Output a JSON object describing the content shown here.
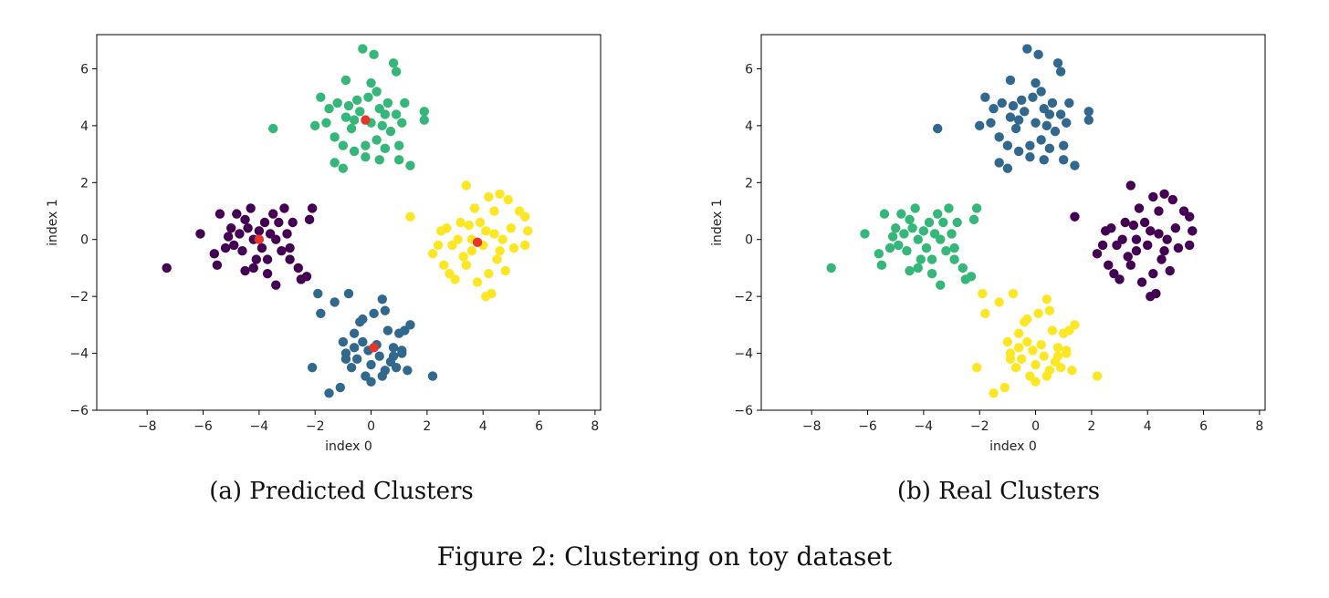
{
  "figure": {
    "caption": "Figure 2: Clustering on toy dataset"
  },
  "chart_data": [
    {
      "type": "scatter",
      "caption": "(a) Predicted Clusters",
      "xlabel": "index 0",
      "ylabel": "index 1",
      "xlim": [
        -9.8,
        8.2
      ],
      "ylim": [
        -6,
        7.2
      ],
      "xticks": [
        -8,
        -6,
        -4,
        -2,
        0,
        2,
        4,
        6,
        8
      ],
      "yticks": [
        -6,
        -4,
        -2,
        0,
        2,
        4,
        6
      ],
      "grid": false,
      "colors": {
        "c0": "#440154",
        "c1": "#31688e",
        "c2": "#35b779",
        "c3": "#fde725",
        "centroid": "#e8352a"
      },
      "centroids": [
        [
          -4.0,
          0.0
        ],
        [
          -0.2,
          4.2
        ],
        [
          3.8,
          -0.1
        ],
        [
          0.1,
          -3.8
        ]
      ],
      "clusters": {
        "c0": [
          [
            -7.3,
            -1.0
          ],
          [
            -6.1,
            0.2
          ],
          [
            -5.6,
            -0.5
          ],
          [
            -5.5,
            -0.9
          ],
          [
            -5.4,
            0.9
          ],
          [
            -5.2,
            -0.3
          ],
          [
            -5.0,
            0.4
          ],
          [
            -4.8,
            0.9
          ],
          [
            -4.7,
            0.2
          ],
          [
            -4.6,
            -0.4
          ],
          [
            -4.5,
            0.7
          ],
          [
            -4.4,
            0.4
          ],
          [
            -4.3,
            1.1
          ],
          [
            -4.2,
            0.0
          ],
          [
            -4.1,
            -0.7
          ],
          [
            -4.0,
            0.3
          ],
          [
            -3.9,
            -0.3
          ],
          [
            -3.8,
            0.6
          ],
          [
            -3.7,
            -0.7
          ],
          [
            -3.6,
            0.2
          ],
          [
            -3.5,
            0.9
          ],
          [
            -3.4,
            0.0
          ],
          [
            -3.3,
            0.6
          ],
          [
            -3.2,
            -0.4
          ],
          [
            -3.1,
            1.1
          ],
          [
            -3.0,
            0.2
          ],
          [
            -2.9,
            -0.7
          ],
          [
            -2.8,
            0.6
          ],
          [
            -2.6,
            -1.0
          ],
          [
            -2.5,
            -1.4
          ],
          [
            -2.3,
            -1.3
          ],
          [
            -3.4,
            -1.6
          ],
          [
            -4.5,
            -1.1
          ],
          [
            -4.9,
            -0.2
          ],
          [
            -3.7,
            -1.2
          ],
          [
            -2.9,
            -0.3
          ],
          [
            -2.1,
            1.1
          ],
          [
            -2.2,
            0.7
          ],
          [
            -4.2,
            -1.0
          ],
          [
            -5.1,
            0.1
          ]
        ],
        "c2": [
          [
            -3.5,
            3.9
          ],
          [
            -2.0,
            4.0
          ],
          [
            -1.6,
            4.1
          ],
          [
            -1.5,
            4.6
          ],
          [
            -1.3,
            3.6
          ],
          [
            -1.2,
            4.8
          ],
          [
            -1.0,
            3.3
          ],
          [
            -0.9,
            4.3
          ],
          [
            -0.8,
            4.7
          ],
          [
            -0.7,
            3.9
          ],
          [
            -0.6,
            3.1
          ],
          [
            -0.5,
            4.9
          ],
          [
            -0.4,
            4.5
          ],
          [
            -0.3,
            6.7
          ],
          [
            -0.2,
            3.3
          ],
          [
            -0.1,
            5.0
          ],
          [
            0.0,
            4.1
          ],
          [
            0.1,
            6.5
          ],
          [
            0.2,
            3.5
          ],
          [
            0.3,
            4.6
          ],
          [
            0.4,
            4.0
          ],
          [
            0.5,
            3.2
          ],
          [
            0.6,
            4.8
          ],
          [
            0.7,
            3.8
          ],
          [
            0.8,
            6.2
          ],
          [
            0.9,
            4.4
          ],
          [
            1.0,
            3.3
          ],
          [
            1.1,
            4.1
          ],
          [
            1.2,
            4.8
          ],
          [
            1.4,
            2.6
          ],
          [
            1.9,
            4.2
          ],
          [
            1.9,
            4.5
          ],
          [
            -1.8,
            5.0
          ],
          [
            -0.9,
            5.6
          ],
          [
            0.0,
            5.5
          ],
          [
            -1.0,
            2.5
          ],
          [
            -0.2,
            2.9
          ],
          [
            0.3,
            2.8
          ],
          [
            1.0,
            2.8
          ],
          [
            -1.3,
            2.7
          ],
          [
            0.2,
            5.2
          ],
          [
            0.9,
            5.9
          ],
          [
            -0.6,
            4.2
          ],
          [
            0.5,
            4.4
          ]
        ],
        "c3": [
          [
            1.4,
            0.8
          ],
          [
            2.2,
            -0.5
          ],
          [
            2.4,
            -0.2
          ],
          [
            2.5,
            0.3
          ],
          [
            2.6,
            -0.9
          ],
          [
            2.7,
            0.4
          ],
          [
            2.8,
            -1.2
          ],
          [
            3.0,
            -1.4
          ],
          [
            3.1,
            0.0
          ],
          [
            3.2,
            0.6
          ],
          [
            3.3,
            -0.6
          ],
          [
            3.4,
            1.9
          ],
          [
            3.5,
            0.5
          ],
          [
            3.6,
            -0.4
          ],
          [
            3.7,
            1.1
          ],
          [
            3.8,
            -1.5
          ],
          [
            3.9,
            0.6
          ],
          [
            4.0,
            -0.2
          ],
          [
            4.1,
            -2.0
          ],
          [
            4.2,
            1.5
          ],
          [
            4.3,
            -1.9
          ],
          [
            4.4,
            0.2
          ],
          [
            4.5,
            -0.7
          ],
          [
            4.6,
            1.6
          ],
          [
            4.7,
            0.0
          ],
          [
            4.8,
            -1.1
          ],
          [
            4.9,
            1.4
          ],
          [
            5.0,
            0.4
          ],
          [
            5.1,
            -0.3
          ],
          [
            5.3,
            1.0
          ],
          [
            5.5,
            -0.2
          ],
          [
            5.5,
            0.8
          ],
          [
            5.6,
            0.3
          ],
          [
            4.4,
            1.0
          ],
          [
            3.6,
            0.0
          ],
          [
            2.9,
            -0.2
          ],
          [
            4.1,
            0.3
          ],
          [
            4.2,
            -1.2
          ],
          [
            3.4,
            -0.9
          ],
          [
            4.6,
            -0.4
          ]
        ],
        "c1": [
          [
            -2.1,
            -4.5
          ],
          [
            -1.9,
            -1.9
          ],
          [
            -1.8,
            -2.6
          ],
          [
            -1.5,
            -5.4
          ],
          [
            -1.3,
            -2.2
          ],
          [
            -1.1,
            -5.2
          ],
          [
            -1.0,
            -3.6
          ],
          [
            -0.9,
            -4.0
          ],
          [
            -0.8,
            -1.9
          ],
          [
            -0.7,
            -4.5
          ],
          [
            -0.6,
            -3.8
          ],
          [
            -0.5,
            -4.2
          ],
          [
            -0.4,
            -2.9
          ],
          [
            -0.3,
            -3.6
          ],
          [
            -0.2,
            -4.8
          ],
          [
            -0.1,
            -3.9
          ],
          [
            0.0,
            -4.4
          ],
          [
            0.1,
            -2.6
          ],
          [
            0.2,
            -3.7
          ],
          [
            0.3,
            -4.1
          ],
          [
            0.4,
            -2.1
          ],
          [
            0.5,
            -4.6
          ],
          [
            0.6,
            -3.2
          ],
          [
            0.7,
            -4.3
          ],
          [
            0.8,
            -3.8
          ],
          [
            0.9,
            -4.5
          ],
          [
            1.0,
            -3.3
          ],
          [
            1.1,
            -4.0
          ],
          [
            1.2,
            -3.2
          ],
          [
            1.4,
            -3.0
          ],
          [
            2.2,
            -4.8
          ],
          [
            -0.9,
            -4.2
          ],
          [
            0.0,
            -5.0
          ],
          [
            0.4,
            -4.8
          ],
          [
            1.3,
            -4.6
          ],
          [
            0.8,
            -4.1
          ],
          [
            -0.3,
            -2.8
          ],
          [
            -0.6,
            -3.3
          ],
          [
            0.5,
            -2.5
          ],
          [
            1.1,
            -3.9
          ]
        ]
      },
      "centroid_color_key": "centroid"
    },
    {
      "type": "scatter",
      "caption": "(b) Real Clusters",
      "xlabel": "index 0",
      "ylabel": "index 1",
      "xlim": [
        -9.8,
        8.2
      ],
      "ylim": [
        -6,
        7.2
      ],
      "xticks": [
        -8,
        -6,
        -4,
        -2,
        0,
        2,
        4,
        6,
        8
      ],
      "yticks": [
        -6,
        -4,
        -2,
        0,
        2,
        4,
        6
      ],
      "grid": false,
      "colors": {
        "c0": "#35b779",
        "c2": "#31688e",
        "c3": "#440154",
        "c1": "#fde725"
      },
      "same_points_as_panel": 0
    }
  ]
}
